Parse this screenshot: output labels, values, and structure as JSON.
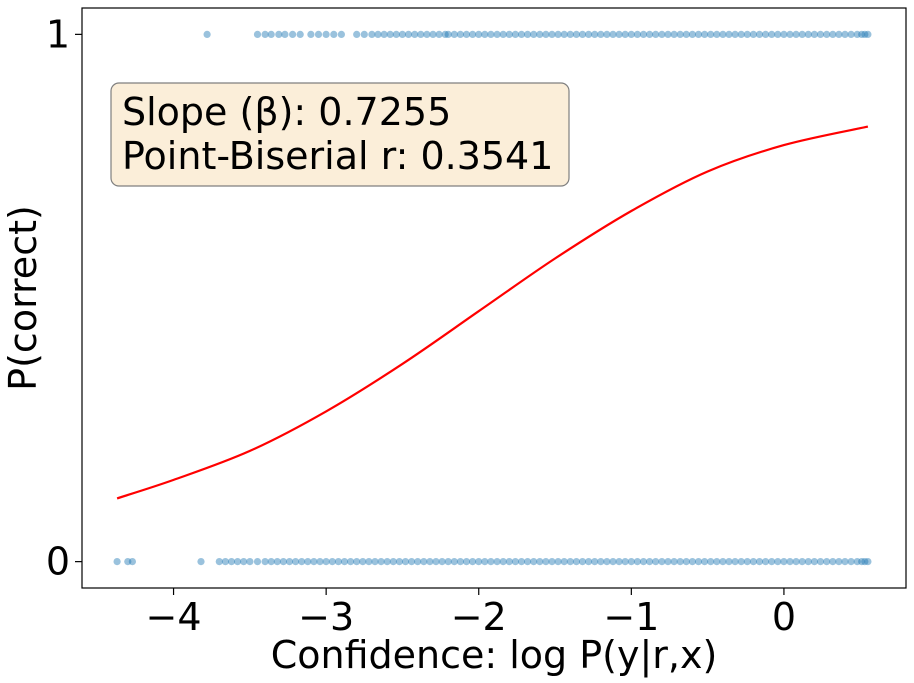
{
  "chart_data": {
    "type": "scatter",
    "xlabel": "Confidence: log P(y|r,x)",
    "ylabel": "P(correct)",
    "xlim": [
      -4.6,
      0.8
    ],
    "ylim": [
      -0.05,
      1.05
    ],
    "x_ticks": [
      {
        "value": -4,
        "label": "−4"
      },
      {
        "value": -3,
        "label": "−3"
      },
      {
        "value": -2,
        "label": "−2"
      },
      {
        "value": -1,
        "label": "−1"
      },
      {
        "value": 0,
        "label": "0"
      }
    ],
    "y_ticks": [
      {
        "value": 0,
        "label": "0"
      },
      {
        "value": 1,
        "label": "1"
      }
    ],
    "grid": false,
    "annotation": {
      "lines": [
        "Slope (β): 0.7255",
        "Point-Biserial r: 0.3541"
      ],
      "placement": "top-left",
      "background": "#fbeed9",
      "border": "#7f7f7f"
    },
    "scatter_color": "#1f77b4",
    "curve_color": "#ff0000",
    "points_correct": [
      -3.78,
      -3.45,
      -3.4,
      -3.36,
      -3.31,
      -3.27,
      -3.22,
      -3.17,
      -3.1,
      -3.05,
      -3.0,
      -2.95,
      -2.9,
      -2.8,
      -2.75,
      -2.7,
      -2.66,
      -2.62,
      -2.58,
      -2.54,
      -2.5,
      -2.46,
      -2.42,
      -2.38,
      -2.34,
      -2.3,
      -2.26,
      -2.22,
      -2.2,
      -2.16,
      -2.12,
      -2.08,
      -2.04,
      -2.0,
      -1.96,
      -1.92,
      -1.88,
      -1.84,
      -1.8,
      -1.76,
      -1.72,
      -1.68,
      -1.64,
      -1.6,
      -1.56,
      -1.52,
      -1.48,
      -1.44,
      -1.4,
      -1.36,
      -1.32,
      -1.28,
      -1.24,
      -1.2,
      -1.16,
      -1.12,
      -1.08,
      -1.04,
      -1.0,
      -0.96,
      -0.92,
      -0.88,
      -0.84,
      -0.8,
      -0.76,
      -0.72,
      -0.68,
      -0.64,
      -0.6,
      -0.56,
      -0.52,
      -0.48,
      -0.44,
      -0.4,
      -0.36,
      -0.32,
      -0.28,
      -0.24,
      -0.2,
      -0.16,
      -0.12,
      -0.08,
      -0.04,
      0.0,
      0.04,
      0.08,
      0.12,
      0.16,
      0.2,
      0.24,
      0.28,
      0.32,
      0.36,
      0.4,
      0.44,
      0.48,
      0.51,
      0.53,
      0.55
    ],
    "points_incorrect": [
      -4.37,
      -4.3,
      -4.27,
      -3.82,
      -3.7,
      -3.66,
      -3.62,
      -3.58,
      -3.54,
      -3.5,
      -3.45,
      -3.4,
      -3.36,
      -3.32,
      -3.28,
      -3.24,
      -3.2,
      -3.16,
      -3.12,
      -3.08,
      -3.04,
      -3.0,
      -2.96,
      -2.92,
      -2.88,
      -2.84,
      -2.8,
      -2.76,
      -2.72,
      -2.68,
      -2.64,
      -2.6,
      -2.56,
      -2.52,
      -2.48,
      -2.44,
      -2.4,
      -2.36,
      -2.32,
      -2.28,
      -2.24,
      -2.2,
      -2.16,
      -2.12,
      -2.08,
      -2.04,
      -2.0,
      -1.96,
      -1.92,
      -1.88,
      -1.84,
      -1.8,
      -1.76,
      -1.72,
      -1.68,
      -1.64,
      -1.6,
      -1.56,
      -1.52,
      -1.48,
      -1.44,
      -1.4,
      -1.36,
      -1.32,
      -1.28,
      -1.24,
      -1.2,
      -1.16,
      -1.12,
      -1.08,
      -1.04,
      -1.0,
      -0.96,
      -0.92,
      -0.88,
      -0.84,
      -0.8,
      -0.76,
      -0.72,
      -0.68,
      -0.64,
      -0.6,
      -0.56,
      -0.52,
      -0.48,
      -0.44,
      -0.4,
      -0.36,
      -0.32,
      -0.28,
      -0.24,
      -0.2,
      -0.16,
      -0.12,
      -0.08,
      -0.04,
      0.0,
      0.04,
      0.08,
      0.12,
      0.16,
      0.2,
      0.24,
      0.28,
      0.32,
      0.36,
      0.4,
      0.44,
      0.48,
      0.51,
      0.53,
      0.55
    ],
    "fit_curve": {
      "x": [
        -4.37,
        -4.0,
        -3.5,
        -3.0,
        -2.5,
        -2.0,
        -1.5,
        -1.0,
        -0.5,
        0.0,
        0.55
      ],
      "y": [
        0.12,
        0.155,
        0.21,
        0.285,
        0.375,
        0.475,
        0.575,
        0.665,
        0.74,
        0.79,
        0.825
      ]
    }
  }
}
